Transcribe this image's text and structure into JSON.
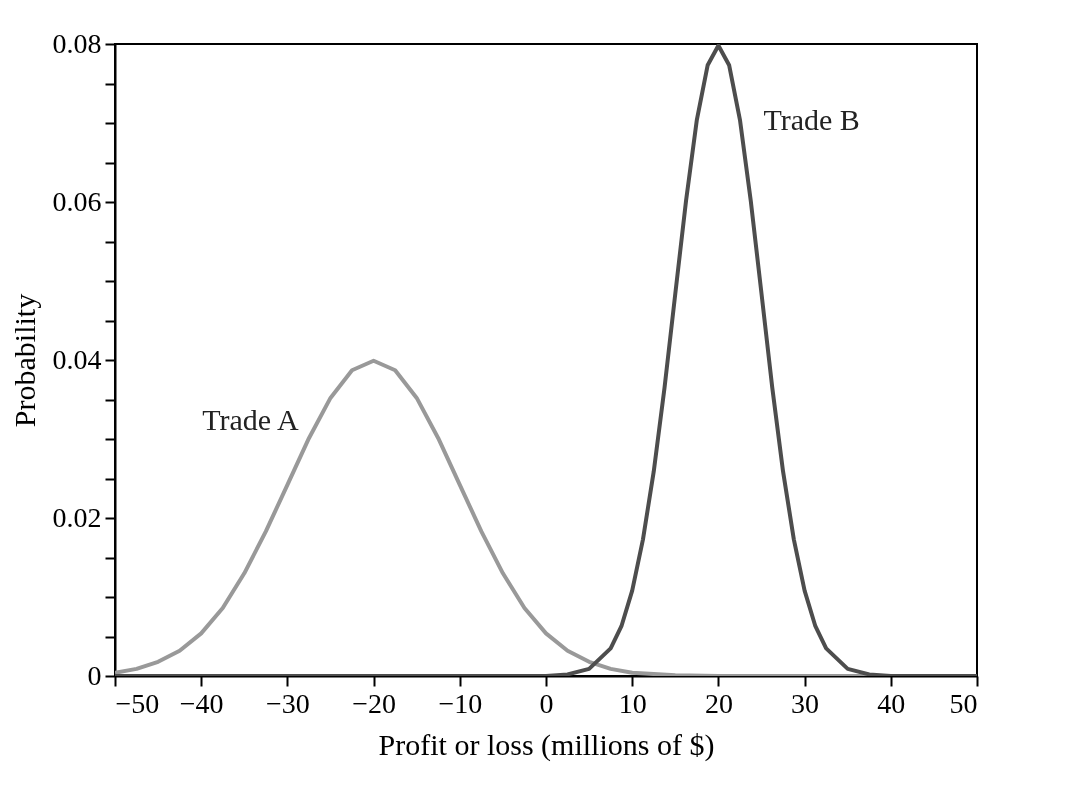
{
  "chart_data": {
    "type": "line",
    "xlabel": "Profit or loss (millions of $)",
    "ylabel": "Probability",
    "xlim": [
      -50,
      50
    ],
    "ylim": [
      0,
      0.08
    ],
    "xticks": [
      {
        "value": -50,
        "label": "−50"
      },
      {
        "value": -40,
        "label": "−40"
      },
      {
        "value": -30,
        "label": "−30"
      },
      {
        "value": -20,
        "label": "−20"
      },
      {
        "value": -10,
        "label": "−10"
      },
      0,
      10,
      20,
      30,
      40,
      50
    ],
    "yticks": [
      0,
      {
        "value": 0.005,
        "label": null
      },
      {
        "value": 0.01,
        "label": null
      },
      {
        "value": 0.015,
        "label": null
      },
      0.02,
      {
        "value": 0.025,
        "label": null
      },
      {
        "value": 0.03,
        "label": null
      },
      {
        "value": 0.035,
        "label": null
      },
      0.04,
      {
        "value": 0.045,
        "label": null
      },
      {
        "value": 0.05,
        "label": null
      },
      {
        "value": 0.055,
        "label": null
      },
      0.06,
      {
        "value": 0.065,
        "label": null
      },
      {
        "value": 0.07,
        "label": null
      },
      {
        "value": 0.075,
        "label": null
      },
      0.08
    ],
    "grid": false,
    "line_style": "solid",
    "series": [
      {
        "name": "Trade A",
        "color": "#999999",
        "x": [
          -50,
          -47.5,
          -45,
          -42.5,
          -40,
          -37.5,
          -35,
          -32.5,
          -30,
          -27.5,
          -25,
          -22.5,
          -20,
          -17.5,
          -15,
          -12.5,
          -10,
          -7.5,
          -5,
          -2.5,
          0,
          2.5,
          5,
          7.5,
          10,
          15,
          20,
          30,
          40,
          50
        ],
        "values": [
          0.0004,
          0.0009,
          0.0018,
          0.0032,
          0.0054,
          0.0086,
          0.013,
          0.0183,
          0.0242,
          0.0301,
          0.0352,
          0.0387,
          0.0399,
          0.0387,
          0.0352,
          0.0301,
          0.0242,
          0.0183,
          0.013,
          0.0086,
          0.0054,
          0.0032,
          0.0018,
          0.0009,
          0.0004,
          0.0001,
          0,
          0,
          0,
          0
        ]
      },
      {
        "name": "Trade B",
        "color": "#4d4d4d",
        "x": [
          -50,
          -40,
          -30,
          -20,
          -10,
          0,
          2.5,
          5,
          7.5,
          8.75,
          10,
          11.25,
          12.5,
          13.75,
          15,
          16.25,
          17.5,
          18.75,
          20,
          21.25,
          22.5,
          23.75,
          25,
          26.25,
          27.5,
          28.75,
          30,
          31.25,
          32.5,
          35,
          37.5,
          40,
          50
        ],
        "values": [
          0,
          0,
          0,
          0,
          0,
          0,
          0.0002,
          0.0009,
          0.0035,
          0.0063,
          0.0108,
          0.0173,
          0.0259,
          0.0365,
          0.0484,
          0.0602,
          0.0704,
          0.0773,
          0.0798,
          0.0773,
          0.0704,
          0.0602,
          0.0484,
          0.0365,
          0.0259,
          0.0173,
          0.0108,
          0.0063,
          0.0035,
          0.0009,
          0.0002,
          0,
          0
        ]
      }
    ]
  }
}
